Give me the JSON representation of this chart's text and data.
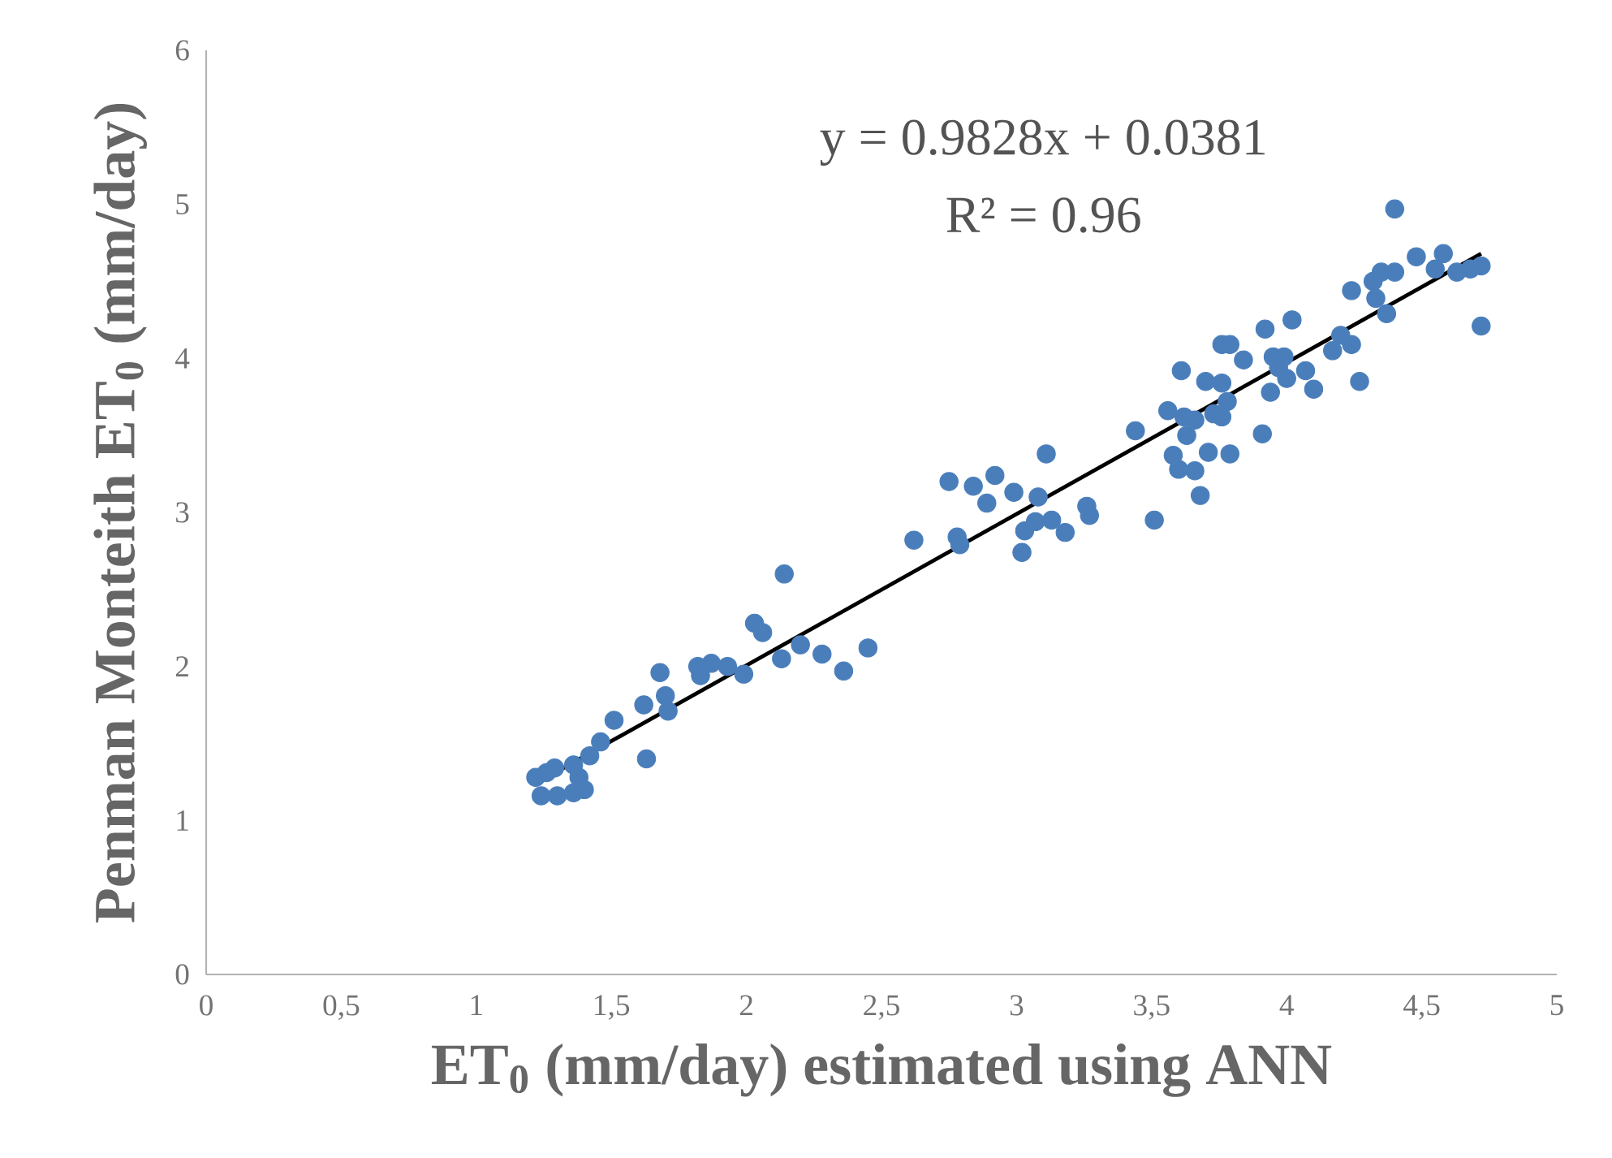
{
  "chart_data": {
    "type": "scatter",
    "xlabel": "ET$_{0}$ (mm/day) estimated using ANN",
    "ylabel": "Penman Monteith ET$_{0}$ (mm/day)",
    "annotations": [
      "y = 0.9828x + 0.0381",
      "R² = 0.96"
    ],
    "xlim": [
      0,
      5
    ],
    "ylim": [
      0,
      6
    ],
    "xticks": [
      0,
      {
        "value": 0.5,
        "label": "0,5"
      },
      1,
      {
        "value": 1.5,
        "label": "1,5"
      },
      2,
      {
        "value": 2.5,
        "label": "2,5"
      },
      3,
      {
        "value": 3.5,
        "label": "3,5"
      },
      4,
      {
        "value": 4.5,
        "label": "4,5"
      },
      5
    ],
    "yticks": [
      0,
      1,
      2,
      3,
      4,
      5,
      6
    ],
    "grid": false,
    "series": [
      {
        "marker": "circle",
        "color": "#4a7ebb",
        "x": [
          1.22,
          1.24,
          1.26,
          1.29,
          1.3,
          1.36,
          1.36,
          1.38,
          1.4,
          1.42,
          1.46,
          1.51,
          1.62,
          1.63,
          1.68,
          1.7,
          1.71,
          1.82,
          1.83,
          1.87,
          1.93,
          1.99,
          2.03,
          2.06,
          2.13,
          2.14,
          2.2,
          2.28,
          2.36,
          2.45,
          2.62,
          2.75,
          2.78,
          2.79,
          2.84,
          2.89,
          2.92,
          2.99,
          3.02,
          3.03,
          3.07,
          3.08,
          3.11,
          3.13,
          3.18,
          3.26,
          3.27,
          3.44,
          3.51,
          3.56,
          3.58,
          3.6,
          3.61,
          3.62,
          3.63,
          3.66,
          3.66,
          3.68,
          3.7,
          3.71,
          3.73,
          3.76,
          3.76,
          3.76,
          3.78,
          3.79,
          3.79,
          3.84,
          3.91,
          3.92,
          3.94,
          3.95,
          3.97,
          3.99,
          4.0,
          4.02,
          4.07,
          4.1,
          4.17,
          4.2,
          4.24,
          4.24,
          4.27,
          4.32,
          4.33,
          4.35,
          4.37,
          4.4,
          4.4,
          4.48,
          4.55,
          4.58,
          4.63,
          4.68,
          4.72,
          4.72
        ],
        "values": [
          1.28,
          1.16,
          1.31,
          1.34,
          1.16,
          1.36,
          1.18,
          1.28,
          1.2,
          1.42,
          1.51,
          1.65,
          1.75,
          1.4,
          1.96,
          1.81,
          1.71,
          2.0,
          1.94,
          2.02,
          2.0,
          1.95,
          2.28,
          2.22,
          2.05,
          2.6,
          2.14,
          2.08,
          1.97,
          2.12,
          2.82,
          3.2,
          2.84,
          2.79,
          3.17,
          3.06,
          3.24,
          3.13,
          2.74,
          2.88,
          2.94,
          3.1,
          3.38,
          2.95,
          2.87,
          3.04,
          2.98,
          3.53,
          2.95,
          3.66,
          3.37,
          3.28,
          3.92,
          3.62,
          3.5,
          3.6,
          3.27,
          3.11,
          3.85,
          3.39,
          3.64,
          4.09,
          3.84,
          3.62,
          3.72,
          3.38,
          4.09,
          3.99,
          3.51,
          4.19,
          3.78,
          4.01,
          3.94,
          4.01,
          3.87,
          4.25,
          3.92,
          3.8,
          4.05,
          4.15,
          4.09,
          4.44,
          3.85,
          4.5,
          4.39,
          4.56,
          4.29,
          4.97,
          4.56,
          4.66,
          4.58,
          4.68,
          4.56,
          4.58,
          4.6,
          4.21
        ]
      },
      {
        "type": "line",
        "marker": "none",
        "color": "#000000",
        "x": [
          1.22,
          4.72
        ],
        "values": [
          1.24,
          4.68
        ]
      }
    ]
  }
}
